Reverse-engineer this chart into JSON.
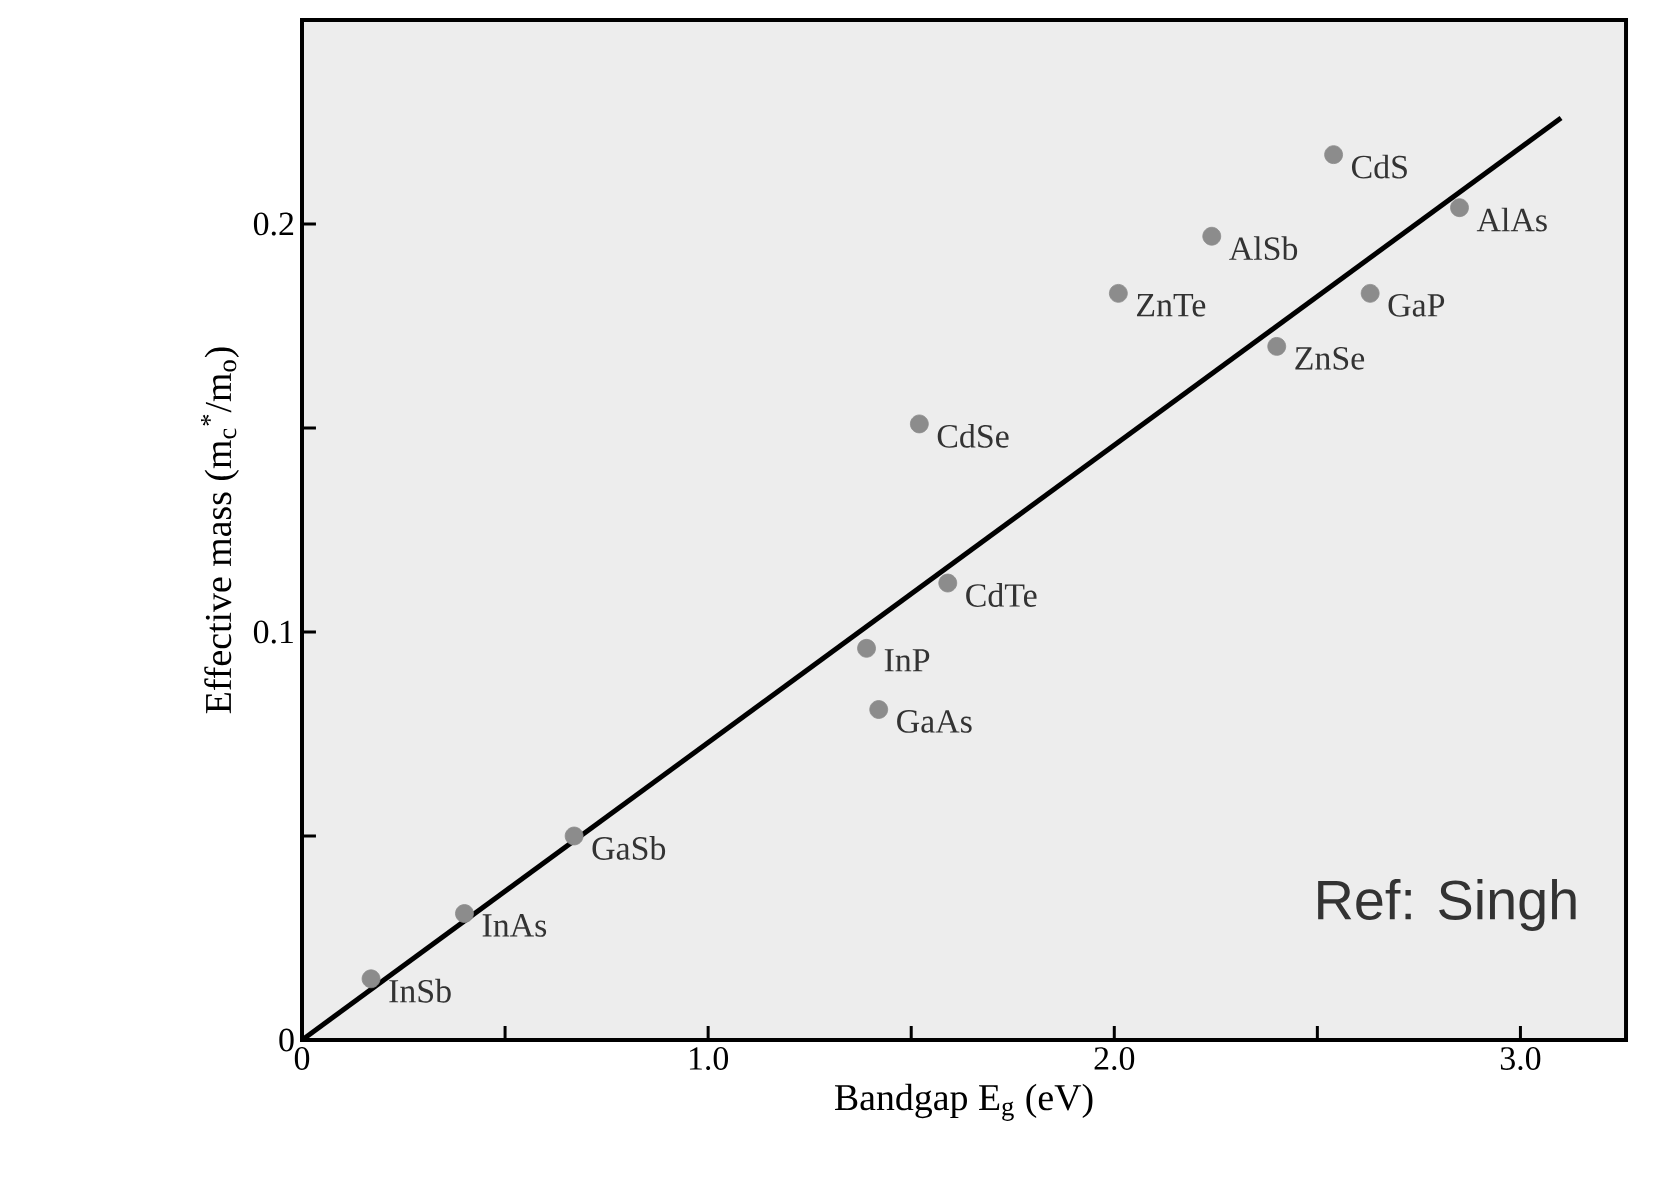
{
  "chart_data": {
    "type": "scatter",
    "xlabel": "Bandgap    E$_{g}$ (eV)",
    "ylabel": "Effective mass (m$_{c}$$^{*}$/m$_{o}$)",
    "xlim": [
      0,
      3.26
    ],
    "ylim": [
      0,
      0.25
    ],
    "xticks": [
      0,
      {
        "value": 0.5,
        "label": null
      },
      {
        "value": 1,
        "label": "1.0"
      },
      {
        "value": 1.5,
        "label": null
      },
      {
        "value": 2,
        "label": "2.0"
      },
      {
        "value": 2.5,
        "label": null
      },
      {
        "value": 3,
        "label": "3.0"
      }
    ],
    "yticks": [
      0,
      {
        "value": 0.05,
        "label": null
      },
      0.1,
      {
        "value": 0.15,
        "label": null
      },
      0.2
    ],
    "grid": false,
    "series": [
      {
        "marker": "circle",
        "color": "#8c8c8c",
        "x": [
          0.17,
          0.4,
          0.67,
          1.39,
          1.42,
          1.59,
          1.52,
          2.01,
          2.24,
          2.4,
          2.63,
          2.54,
          2.85
        ],
        "values": [
          0.015,
          0.031,
          0.05,
          0.096,
          0.081,
          0.112,
          0.151,
          0.183,
          0.197,
          0.17,
          0.183,
          0.217,
          0.204
        ]
      },
      {
        "type": "line",
        "marker": "none",
        "color": "#000000",
        "x": [
          0,
          3.1
        ],
        "values": [
          0,
          0.226
        ]
      }
    ],
    "annotations": [
      {
        "text": "InSb",
        "x": 0.17,
        "y": 0.015
      },
      {
        "text": "InAs",
        "x": 0.4,
        "y": 0.031
      },
      {
        "text": "GaSb",
        "x": 0.67,
        "y": 0.05
      },
      {
        "text": "InP",
        "x": 1.39,
        "y": 0.096
      },
      {
        "text": "GaAs",
        "x": 1.42,
        "y": 0.081
      },
      {
        "text": "CdTe",
        "x": 1.59,
        "y": 0.112
      },
      {
        "text": "CdSe",
        "x": 1.52,
        "y": 0.151
      },
      {
        "text": "ZnTe",
        "x": 2.01,
        "y": 0.183
      },
      {
        "text": "AlSb",
        "x": 2.24,
        "y": 0.197
      },
      {
        "text": "ZnSe",
        "x": 2.4,
        "y": 0.17
      },
      {
        "text": "GaP",
        "x": 2.63,
        "y": 0.183
      },
      {
        "text": "CdS",
        "x": 2.54,
        "y": 0.217
      },
      {
        "text": "AlAs",
        "x": 2.85,
        "y": 0.204
      },
      "Ref: Singh"
    ]
  }
}
